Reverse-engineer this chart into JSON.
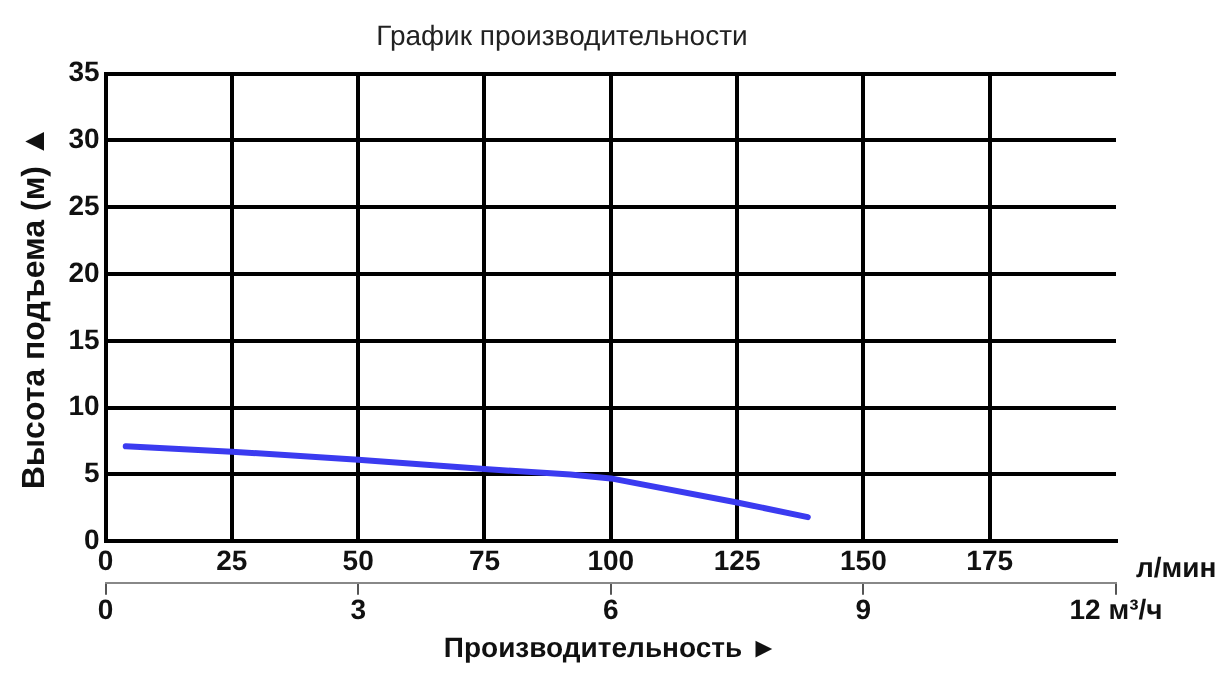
{
  "chart_data": {
    "type": "line",
    "title": "График производительности",
    "xlabel": "Производительность ►",
    "ylabel": "Высота подъема (м) ▲",
    "x": [
      4,
      25,
      50,
      75,
      92,
      100,
      125,
      139
    ],
    "series": [
      {
        "color": "#3b3bf0",
        "values": [
          7.1,
          6.7,
          6.1,
          5.4,
          5.0,
          4.7,
          2.9,
          1.8
        ]
      }
    ],
    "xlim": [
      0,
      200
    ],
    "xticks": [
      0,
      25,
      50,
      75,
      100,
      125,
      150,
      175
    ],
    "x2lim": [
      0,
      12
    ],
    "x2ticks": [
      0,
      3,
      6,
      9,
      {
        "value": 12,
        "label": "12 м³/ч"
      }
    ],
    "ylim": [
      0,
      35
    ],
    "yticks": [
      0,
      5,
      10,
      15,
      20,
      25,
      30,
      35
    ],
    "annotations": [
      "л/мин"
    ],
    "grid": true,
    "legend": false,
    "marker": "none",
    "line_style": "solid"
  }
}
